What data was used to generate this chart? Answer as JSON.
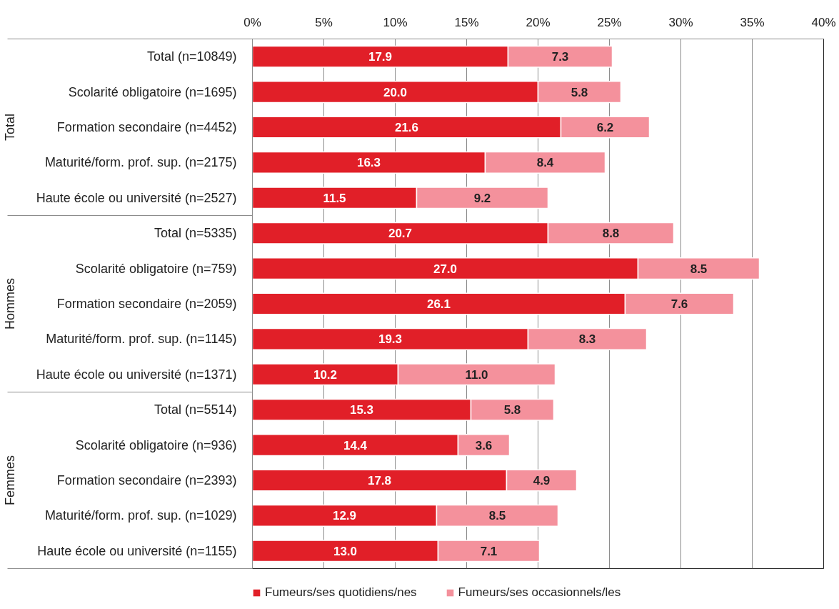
{
  "chart_data": {
    "type": "bar",
    "orientation": "horizontal",
    "stacked": true,
    "categories": [
      "Total (n=10849)",
      "Scolarité obligatoire (n=1695)",
      "Formation secondaire (n=4452)",
      "Maturité/form. prof. sup. (n=2175)",
      "Haute école ou université (n=2527)",
      "Total (n=5335)",
      "Scolarité obligatoire (n=759)",
      "Formation secondaire (n=2059)",
      "Maturité/form. prof. sup. (n=1145)",
      "Haute école ou université (n=1371)",
      "Total (n=5514)",
      "Scolarité obligatoire (n=936)",
      "Formation secondaire (n=2393)",
      "Maturité/form. prof. sup. (n=1029)",
      "Haute école ou université (n=1155)"
    ],
    "series": [
      {
        "name": "Fumeurs/ses quotidiens/nes",
        "color": "#e11f28",
        "values": [
          17.9,
          20.0,
          21.6,
          16.3,
          11.5,
          20.7,
          27.0,
          26.1,
          19.3,
          10.2,
          15.3,
          14.4,
          17.8,
          12.9,
          13.0
        ],
        "value_labels": [
          "17.9",
          "20.0",
          "21.6",
          "16.3",
          "11.5",
          "20.7",
          "27.0",
          "26.1",
          "19.3",
          "10.2",
          "15.3",
          "14.4",
          "17.8",
          "12.9",
          "13.0"
        ]
      },
      {
        "name": "Fumeurs/ses occasionnels/les",
        "color": "#f4919c",
        "values": [
          7.3,
          5.8,
          6.2,
          8.4,
          9.2,
          8.8,
          8.5,
          7.6,
          8.3,
          11.0,
          5.8,
          3.6,
          4.9,
          8.5,
          7.1
        ],
        "value_labels": [
          "7.3",
          "5.8",
          "6.2",
          "8.4",
          "9.2",
          "8.8",
          "8.5",
          "7.6",
          "8.3",
          "11.0",
          "5.8",
          "3.6",
          "4.9",
          "8.5",
          "7.1"
        ]
      }
    ],
    "annotations": [
      "Total",
      "Hommes",
      "Femmes"
    ],
    "xlim": [
      0,
      40
    ],
    "xticks": [
      {
        "value": 0,
        "label": "0%"
      },
      {
        "value": 5,
        "label": "5%"
      },
      {
        "value": 10,
        "label": "10%"
      },
      {
        "value": 15,
        "label": "15%"
      },
      {
        "value": 20,
        "label": "20%"
      },
      {
        "value": 25,
        "label": "25%"
      },
      {
        "value": 30,
        "label": "30%"
      },
      {
        "value": 35,
        "label": "35%"
      },
      {
        "value": 40,
        "label": "40%"
      }
    ],
    "grid": "x",
    "legend": "bottom"
  }
}
